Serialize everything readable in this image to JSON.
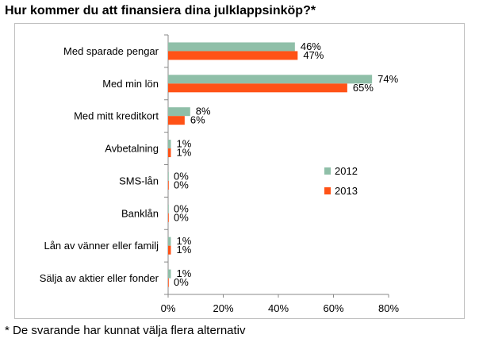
{
  "title": "Hur kommer du att finansiera dina julklappsinköp?*",
  "footnote": "* De svarande har kunnat välja flera alternativ",
  "chart_data": {
    "type": "bar",
    "orientation": "horizontal",
    "categories": [
      "Med sparade pengar",
      "Med min lön",
      "Med mitt kreditkort",
      "Avbetalning",
      "SMS-lån",
      "Banklån",
      "Lån av vänner eller familj",
      "Sälja av aktier eller fonder"
    ],
    "series": [
      {
        "name": "2012",
        "color": "#8fbfa8",
        "values": [
          46,
          74,
          8,
          1,
          0,
          0,
          1,
          1
        ],
        "labels": [
          "46%",
          "74%",
          "8%",
          "1%",
          "0%",
          "0%",
          "1%",
          "1%"
        ]
      },
      {
        "name": "2013",
        "color": "#ff5216",
        "values": [
          47,
          65,
          6,
          1,
          0,
          0,
          1,
          0
        ],
        "labels": [
          "47%",
          "65%",
          "6%",
          "1%",
          "0%",
          "0%",
          "1%",
          "0%"
        ]
      }
    ],
    "xlim": [
      0,
      80
    ],
    "xticks": [
      "0%",
      "20%",
      "40%",
      "60%",
      "80%"
    ],
    "legend_position": "right",
    "grid": false
  }
}
